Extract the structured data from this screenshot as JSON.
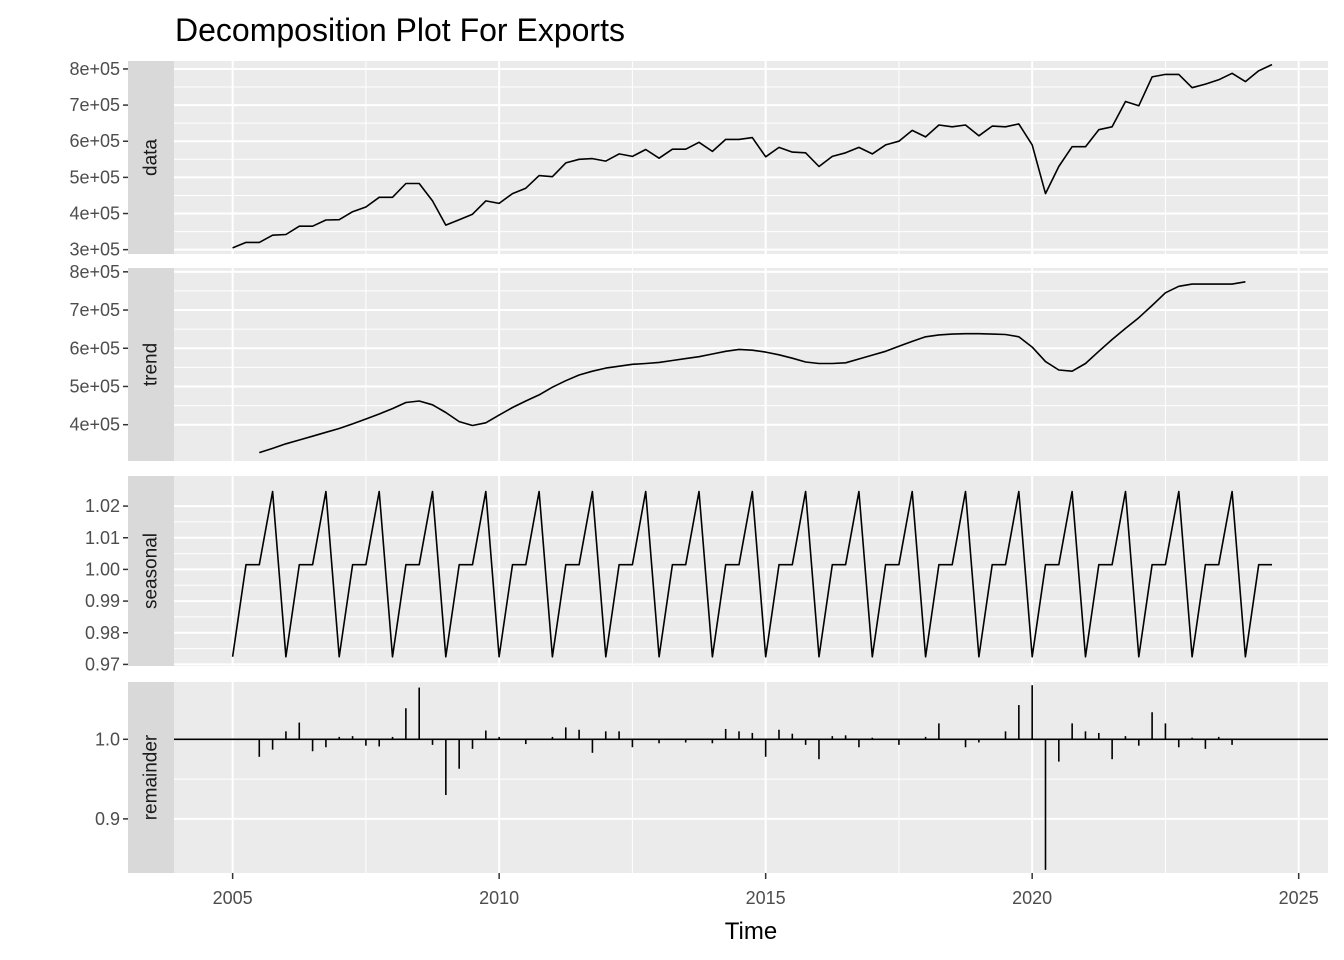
{
  "chart_data": {
    "type": "line",
    "title": "Decomposition Plot For Exports",
    "xlabel": "Time",
    "ylabel": "",
    "x_ticks": [
      2005,
      2010,
      2015,
      2020,
      2025
    ],
    "x_range": [
      2003.9,
      2025.55
    ],
    "grid": true,
    "colors": {
      "panel": "#ebebeb",
      "strip": "#d9d9d9",
      "grid": "#ffffff",
      "line": "#000000",
      "tick_text": "#4d4d4d"
    },
    "panels": [
      {
        "label": "data",
        "kind": "line",
        "ylim": [
          288000,
          822000
        ],
        "y_ticks": [
          300000,
          400000,
          500000,
          600000,
          700000,
          800000
        ],
        "y_tick_labels": [
          "3e+05",
          "4e+05",
          "5e+05",
          "6e+05",
          "7e+05",
          "8e+05"
        ],
        "x": [
          2005.0,
          2005.25,
          2005.5,
          2005.75,
          2006.0,
          2006.25,
          2006.5,
          2006.75,
          2007.0,
          2007.25,
          2007.5,
          2007.75,
          2008.0,
          2008.25,
          2008.5,
          2008.75,
          2009.0,
          2009.25,
          2009.5,
          2009.75,
          2010.0,
          2010.25,
          2010.5,
          2010.75,
          2011.0,
          2011.25,
          2011.5,
          2011.75,
          2012.0,
          2012.25,
          2012.5,
          2012.75,
          2013.0,
          2013.25,
          2013.5,
          2013.75,
          2014.0,
          2014.25,
          2014.5,
          2014.75,
          2015.0,
          2015.25,
          2015.5,
          2015.75,
          2016.0,
          2016.25,
          2016.5,
          2016.75,
          2017.0,
          2017.25,
          2017.5,
          2017.75,
          2018.0,
          2018.25,
          2018.5,
          2018.75,
          2019.0,
          2019.25,
          2019.5,
          2019.75,
          2020.0,
          2020.25,
          2020.5,
          2020.75,
          2021.0,
          2021.25,
          2021.5,
          2021.75,
          2022.0,
          2022.25,
          2022.5,
          2022.75,
          2023.0,
          2023.25,
          2023.5,
          2023.75,
          2024.0,
          2024.25,
          2024.5
        ],
        "y": [
          305000,
          320000,
          320000,
          340000,
          342000,
          365000,
          365000,
          382000,
          383000,
          405000,
          418000,
          445000,
          445000,
          483000,
          483000,
          435000,
          368000,
          383000,
          398000,
          435000,
          428000,
          455000,
          470000,
          505000,
          502000,
          540000,
          550000,
          552000,
          545000,
          565000,
          558000,
          577000,
          553000,
          578000,
          578000,
          597000,
          572000,
          605000,
          605000,
          610000,
          557000,
          583000,
          570000,
          568000,
          530000,
          558000,
          568000,
          583000,
          565000,
          590000,
          600000,
          630000,
          612000,
          645000,
          640000,
          645000,
          615000,
          642000,
          640000,
          648000,
          590000,
          455000,
          530000,
          585000,
          585000,
          632000,
          640000,
          710000,
          698000,
          778000,
          785000,
          785000,
          748000,
          758000,
          770000,
          788000,
          765000,
          795000,
          812000
        ]
      },
      {
        "label": "trend",
        "kind": "line",
        "ylim": [
          305000,
          810000
        ],
        "y_ticks": [
          400000,
          500000,
          600000,
          700000,
          800000
        ],
        "y_tick_labels": [
          "4e+05",
          "5e+05",
          "6e+05",
          "7e+05",
          "8e+05"
        ],
        "x": [
          2005.5,
          2005.75,
          2006.0,
          2006.25,
          2006.5,
          2006.75,
          2007.0,
          2007.25,
          2007.5,
          2007.75,
          2008.0,
          2008.25,
          2008.5,
          2008.75,
          2009.0,
          2009.25,
          2009.5,
          2009.75,
          2010.0,
          2010.25,
          2010.5,
          2010.75,
          2011.0,
          2011.25,
          2011.5,
          2011.75,
          2012.0,
          2012.25,
          2012.5,
          2012.75,
          2013.0,
          2013.25,
          2013.5,
          2013.75,
          2014.0,
          2014.25,
          2014.5,
          2014.75,
          2015.0,
          2015.25,
          2015.5,
          2015.75,
          2016.0,
          2016.25,
          2016.5,
          2016.75,
          2017.0,
          2017.25,
          2017.5,
          2017.75,
          2018.0,
          2018.25,
          2018.5,
          2018.75,
          2019.0,
          2019.25,
          2019.5,
          2019.75,
          2020.0,
          2020.25,
          2020.5,
          2020.75,
          2021.0,
          2021.25,
          2021.5,
          2021.75,
          2022.0,
          2022.25,
          2022.5,
          2022.75,
          2023.0,
          2023.25,
          2023.5,
          2023.75,
          2024.0
        ],
        "y": [
          327000,
          338000,
          350000,
          360000,
          370000,
          380000,
          390000,
          402000,
          415000,
          428000,
          442000,
          458000,
          462000,
          452000,
          432000,
          408000,
          398000,
          405000,
          425000,
          445000,
          462000,
          478000,
          498000,
          515000,
          530000,
          540000,
          548000,
          553000,
          558000,
          560000,
          563000,
          568000,
          573000,
          578000,
          585000,
          592000,
          597000,
          595000,
          590000,
          583000,
          574000,
          564000,
          560000,
          560000,
          562000,
          572000,
          582000,
          592000,
          605000,
          618000,
          630000,
          635000,
          637000,
          638000,
          638000,
          637000,
          636000,
          630000,
          603000,
          565000,
          543000,
          540000,
          560000,
          592000,
          623000,
          652000,
          680000,
          712000,
          745000,
          762000,
          768000,
          768000,
          768000,
          768000,
          774000
        ]
      },
      {
        "label": "seasonal",
        "kind": "line",
        "ylim": [
          0.9695,
          1.0295
        ],
        "y_ticks": [
          0.97,
          0.98,
          0.99,
          1.0,
          1.01,
          1.02
        ],
        "y_tick_labels": [
          "0.97",
          "0.98",
          "0.99",
          "1.00",
          "1.01",
          "1.02"
        ],
        "season_values": [
          0.9724,
          1.0015,
          1.0015,
          1.0246
        ],
        "start_year": 2005.0,
        "end_year": 2024.5
      },
      {
        "label": "remainder",
        "kind": "bar",
        "ylim": [
          0.832,
          1.072
        ],
        "baseline": 1.0,
        "y_ticks": [
          0.9,
          1.0
        ],
        "y_tick_labels": [
          "0.9",
          "1.0"
        ],
        "x": [
          2005.5,
          2005.75,
          2006.0,
          2006.25,
          2006.5,
          2006.75,
          2007.0,
          2007.25,
          2007.5,
          2007.75,
          2008.0,
          2008.25,
          2008.5,
          2008.75,
          2009.0,
          2009.25,
          2009.5,
          2009.75,
          2010.0,
          2010.5,
          2011.0,
          2011.25,
          2011.5,
          2011.75,
          2012.0,
          2012.25,
          2012.5,
          2013.0,
          2013.5,
          2014.0,
          2014.25,
          2014.5,
          2014.75,
          2015.0,
          2015.25,
          2015.5,
          2015.75,
          2016.0,
          2016.25,
          2016.5,
          2016.75,
          2017.0,
          2017.5,
          2018.0,
          2018.25,
          2018.75,
          2019.0,
          2019.5,
          2019.75,
          2020.0,
          2020.25,
          2020.5,
          2020.75,
          2021.0,
          2021.25,
          2021.5,
          2021.75,
          2022.0,
          2022.25,
          2022.5,
          2022.75,
          2023.0,
          2023.25,
          2023.5,
          2023.75
        ],
        "y": [
          0.978,
          0.987,
          1.01,
          1.021,
          0.985,
          0.99,
          1.003,
          1.004,
          0.992,
          0.991,
          1.003,
          1.039,
          1.065,
          0.993,
          0.93,
          0.963,
          0.988,
          1.011,
          1.003,
          0.994,
          1.003,
          1.015,
          1.012,
          0.983,
          1.01,
          1.01,
          0.99,
          0.995,
          0.996,
          0.995,
          1.013,
          1.01,
          1.008,
          0.978,
          1.012,
          1.007,
          0.993,
          0.975,
          1.004,
          1.005,
          0.99,
          1.002,
          0.993,
          1.003,
          1.02,
          0.99,
          0.996,
          1.01,
          1.043,
          1.068,
          0.836,
          0.972,
          1.02,
          1.01,
          1.008,
          0.975,
          1.004,
          0.992,
          1.034,
          1.02,
          0.99,
          1.002,
          0.988,
          1.003,
          0.993
        ]
      }
    ]
  }
}
